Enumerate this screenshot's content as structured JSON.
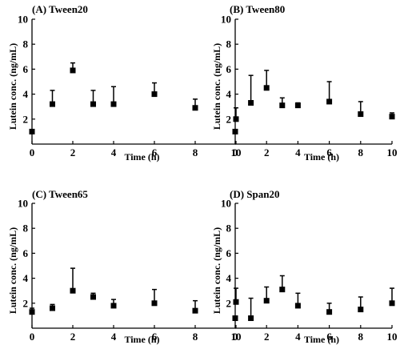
{
  "chart_data": [
    {
      "type": "scatter",
      "title": "(A) Tween20",
      "xlabel": "Time (h)",
      "ylabel": "Lutein conc. (ng/mL)",
      "xlim": [
        0,
        10
      ],
      "ylim": [
        0,
        10
      ],
      "xticks": [
        0,
        2,
        4,
        6,
        8,
        10
      ],
      "yticks": [
        2,
        4,
        6,
        8,
        10
      ],
      "error_bars": "one-sided (upper)",
      "x": [
        0,
        1,
        2,
        3,
        4,
        6,
        8,
        10
      ],
      "y": [
        1.0,
        3.2,
        5.9,
        3.2,
        3.2,
        4.0,
        2.9,
        2.0
      ],
      "err": [
        0.0,
        1.1,
        0.6,
        1.1,
        1.4,
        0.9,
        0.7,
        0.9
      ]
    },
    {
      "type": "scatter",
      "title": "(B) Tween80",
      "xlabel": "Time (h)",
      "ylabel": "Lutein conc. (ng/mL)",
      "xlim": [
        0,
        10
      ],
      "ylim": [
        0,
        10
      ],
      "xticks": [
        0,
        2,
        4,
        6,
        8,
        10
      ],
      "yticks": [
        2,
        4,
        6,
        8,
        10
      ],
      "error_bars": "one-sided (upper)",
      "x": [
        0,
        1,
        2,
        3,
        4,
        6,
        8,
        10
      ],
      "y": [
        1.0,
        3.3,
        4.5,
        3.1,
        3.1,
        3.4,
        2.4,
        2.2
      ],
      "err": [
        0.0,
        2.2,
        1.4,
        0.6,
        0.2,
        1.6,
        1.0,
        0.3
      ]
    },
    {
      "type": "scatter",
      "title": "(C) Tween65",
      "xlabel": "Time (h)",
      "ylabel": "Lutein conc. (ng/mL)",
      "xlim": [
        0,
        10
      ],
      "ylim": [
        0,
        10
      ],
      "xticks": [
        0,
        2,
        4,
        6,
        8,
        10
      ],
      "yticks": [
        2,
        4,
        6,
        8,
        10
      ],
      "error_bars": "one-sided (upper)",
      "x": [
        0,
        1,
        2,
        3,
        4,
        6,
        8,
        10
      ],
      "y": [
        1.3,
        1.6,
        3.0,
        2.5,
        1.8,
        2.0,
        1.4,
        2.1
      ],
      "err": [
        0.3,
        0.3,
        1.8,
        0.3,
        0.5,
        1.1,
        0.8,
        1.1
      ]
    },
    {
      "type": "scatter",
      "title": "(D) Span20",
      "xlabel": "Time (h)",
      "ylabel": "Lutein conc. (ng/mL)",
      "xlim": [
        0,
        10
      ],
      "ylim": [
        0,
        10
      ],
      "xticks": [
        0,
        2,
        4,
        6,
        8,
        10
      ],
      "yticks": [
        2,
        4,
        6,
        8,
        10
      ],
      "error_bars": "one-sided (upper)",
      "x": [
        0,
        1,
        2,
        3,
        4,
        6,
        8,
        10
      ],
      "y": [
        0.8,
        0.8,
        2.2,
        3.1,
        1.8,
        1.3,
        1.5,
        2.0
      ],
      "err": [
        0.0,
        1.6,
        1.1,
        1.1,
        1.0,
        0.7,
        1.0,
        1.2
      ]
    }
  ]
}
